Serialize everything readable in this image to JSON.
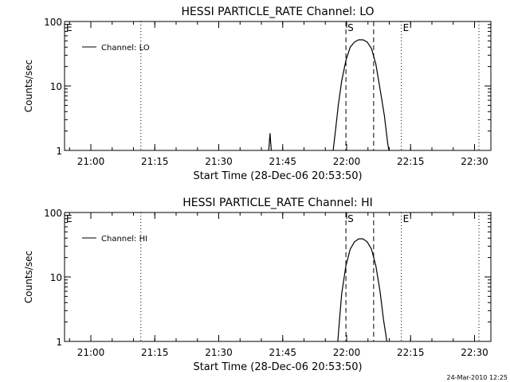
{
  "footer": {
    "timestamp": "24-Mar-2010 12:25"
  },
  "chart_data": [
    {
      "type": "line",
      "title": "HESSI PARTICLE_RATE Channel: LO",
      "xlabel": "Start Time (28-Dec-06 20:53:50)",
      "ylabel": "Counts/sec",
      "x_unit": "minutes since 20:53:50",
      "xlim": [
        0,
        100
      ],
      "ylim": [
        1,
        100
      ],
      "y_scale": "log",
      "x_ticks": [
        {
          "label": "21:00",
          "value": 6.17
        },
        {
          "label": "21:15",
          "value": 21.17
        },
        {
          "label": "21:30",
          "value": 36.17
        },
        {
          "label": "21:45",
          "value": 51.17
        },
        {
          "label": "22:00",
          "value": 66.17
        },
        {
          "label": "22:15",
          "value": 81.17
        },
        {
          "label": "22:30",
          "value": 96.17
        }
      ],
      "y_ticks": [
        {
          "label": "1",
          "value": 1
        },
        {
          "label": "10",
          "value": 10
        },
        {
          "label": "100",
          "value": 100
        }
      ],
      "legend": {
        "position": "top-left",
        "label": "Channel: LO"
      },
      "markers": [
        {
          "label": "E",
          "x": 0.0,
          "style": "dotted"
        },
        {
          "label": "",
          "x": 17.9,
          "style": "dotted"
        },
        {
          "label": "S",
          "x": 66.0,
          "style": "dashed"
        },
        {
          "label": "",
          "x": 72.5,
          "style": "dashed"
        },
        {
          "label": "E",
          "x": 79.0,
          "style": "dotted"
        },
        {
          "label": "",
          "x": 97.2,
          "style": "dotted"
        }
      ],
      "series": [
        {
          "name": "Channel: LO",
          "segments": [
            [
              [
                47.9,
                1.0
              ],
              [
                48.05,
                1.4
              ],
              [
                48.2,
                1.85
              ],
              [
                48.35,
                1.3
              ],
              [
                48.5,
                1.0
              ]
            ],
            [
              [
                63.0,
                1.0
              ],
              [
                63.6,
                2.2
              ],
              [
                64.2,
                5.0
              ],
              [
                65.0,
                12.0
              ],
              [
                66.0,
                25.0
              ],
              [
                67.0,
                40.0
              ],
              [
                68.0,
                48.0
              ],
              [
                69.0,
                52.0
              ],
              [
                70.0,
                52.0
              ],
              [
                71.0,
                48.0
              ],
              [
                72.0,
                38.0
              ],
              [
                73.0,
                22.0
              ],
              [
                74.0,
                9.0
              ],
              [
                75.0,
                3.5
              ],
              [
                75.8,
                1.3
              ],
              [
                76.1,
                1.0
              ]
            ]
          ]
        }
      ]
    },
    {
      "type": "line",
      "title": "HESSI PARTICLE_RATE Channel: HI",
      "xlabel": "Start Time (28-Dec-06 20:53:50)",
      "ylabel": "Counts/sec",
      "x_unit": "minutes since 20:53:50",
      "xlim": [
        0,
        100
      ],
      "ylim": [
        1,
        100
      ],
      "y_scale": "log",
      "x_ticks": [
        {
          "label": "21:00",
          "value": 6.17
        },
        {
          "label": "21:15",
          "value": 21.17
        },
        {
          "label": "21:30",
          "value": 36.17
        },
        {
          "label": "21:45",
          "value": 51.17
        },
        {
          "label": "22:00",
          "value": 66.17
        },
        {
          "label": "22:15",
          "value": 81.17
        },
        {
          "label": "22:30",
          "value": 96.17
        }
      ],
      "y_ticks": [
        {
          "label": "1",
          "value": 1
        },
        {
          "label": "10",
          "value": 10
        },
        {
          "label": "100",
          "value": 100
        }
      ],
      "legend": {
        "position": "top-left",
        "label": "Channel: HI"
      },
      "markers": [
        {
          "label": "E",
          "x": 0.0,
          "style": "dotted"
        },
        {
          "label": "",
          "x": 17.9,
          "style": "dotted"
        },
        {
          "label": "S",
          "x": 66.0,
          "style": "dashed"
        },
        {
          "label": "",
          "x": 72.5,
          "style": "dashed"
        },
        {
          "label": "E",
          "x": 79.0,
          "style": "dotted"
        },
        {
          "label": "",
          "x": 97.2,
          "style": "dotted"
        }
      ],
      "series": [
        {
          "name": "Channel: HI",
          "segments": [
            [
              [
                64.1,
                1.0
              ],
              [
                64.5,
                2.2
              ],
              [
                65.0,
                5.5
              ],
              [
                66.0,
                15.0
              ],
              [
                67.0,
                27.0
              ],
              [
                68.0,
                35.0
              ],
              [
                69.0,
                39.0
              ],
              [
                70.0,
                39.0
              ],
              [
                71.0,
                35.0
              ],
              [
                72.0,
                27.0
              ],
              [
                73.0,
                15.0
              ],
              [
                74.0,
                6.0
              ],
              [
                74.8,
                2.2
              ],
              [
                75.6,
                1.0
              ]
            ]
          ]
        }
      ]
    }
  ]
}
